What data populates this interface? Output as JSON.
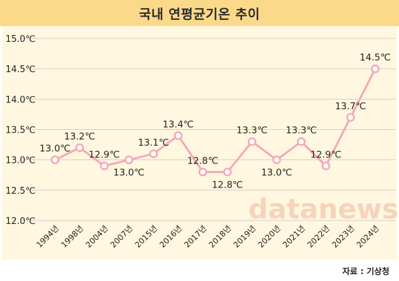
{
  "title": "국내 연평균기온 추이",
  "source": "자료 : 기상청",
  "watermark": "datanews",
  "colors": {
    "title_bg": "#fbd98a",
    "panel_bg": "#fff7df",
    "line": "#f4a9b8",
    "marker_fill": "#ffffff",
    "grid": "#cfcfcf"
  },
  "chart_data": {
    "type": "line",
    "title": "국내 연평균기온 추이",
    "xlabel": "",
    "ylabel": "",
    "categories": [
      "1994년",
      "1998년",
      "2004년",
      "2007년",
      "2015년",
      "2016년",
      "2017년",
      "2018년",
      "2019년",
      "2020년",
      "2021년",
      "2022년",
      "2023년",
      "2024년"
    ],
    "series": [
      {
        "values": [
          13.0,
          13.2,
          12.9,
          13.0,
          13.1,
          13.4,
          12.8,
          12.8,
          13.3,
          13.0,
          13.3,
          12.9,
          13.7,
          14.5
        ]
      }
    ],
    "data_labels": [
      "13.0℃",
      "13.2℃",
      "12.9℃",
      "13.0℃",
      "13.1℃",
      "13.4℃",
      "12.8℃",
      "12.8℃",
      "13.3℃",
      "13.0℃",
      "13.3℃",
      "12.9℃",
      "13.7℃",
      "14.5℃"
    ],
    "label_positions": [
      "above",
      "above",
      "above",
      "below",
      "above",
      "above",
      "above",
      "below",
      "above",
      "below",
      "above",
      "above",
      "above",
      "above"
    ],
    "yticks": [
      12.0,
      12.5,
      13.0,
      13.5,
      14.0,
      14.5,
      15.0
    ],
    "ytick_labels": [
      "12.0℃",
      "12.5℃",
      "13.0℃",
      "13.5℃",
      "14.0℃",
      "14.5℃",
      "15.0℃"
    ],
    "ylim": [
      12.0,
      15.0
    ],
    "grid": true,
    "legend": "none"
  }
}
